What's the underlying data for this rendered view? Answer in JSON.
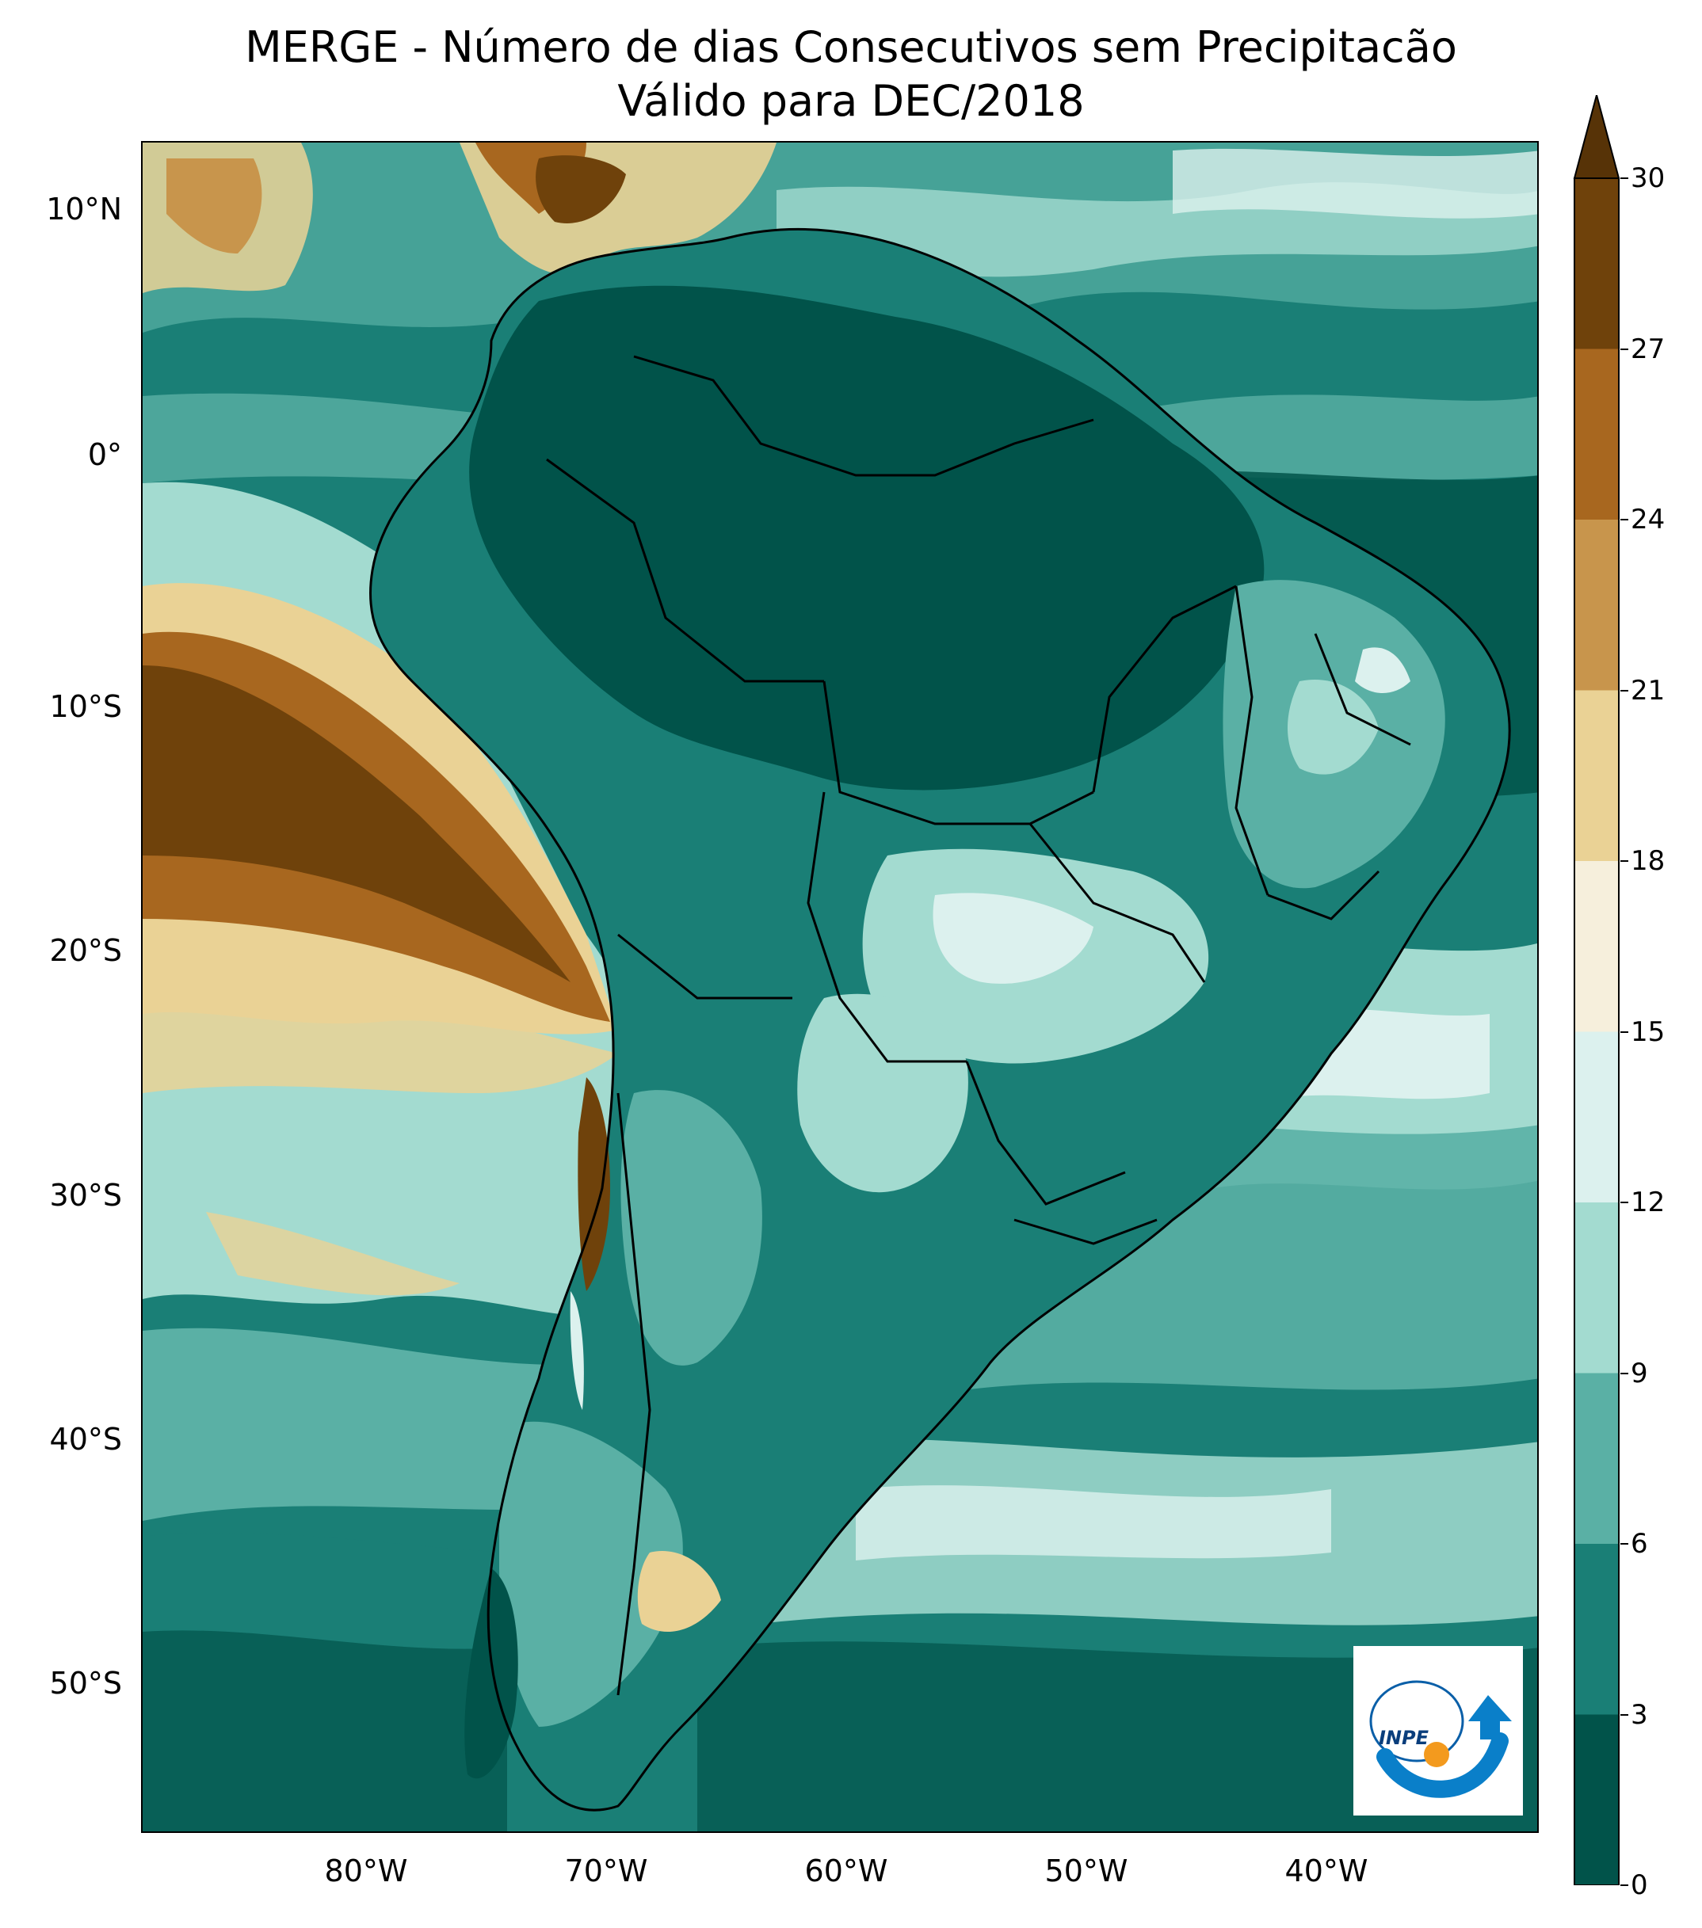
{
  "title": {
    "line1": "MERGE - Número de dias Consecutivos sem Precipitacão",
    "line2": "Válido para DEC/2018"
  },
  "axes": {
    "lat_ticks": [
      "10°N",
      "0°",
      "10°S",
      "20°S",
      "30°S",
      "40°S",
      "50°S"
    ],
    "lon_ticks": [
      "80°W",
      "70°W",
      "60°W",
      "50°W",
      "40°W"
    ]
  },
  "colorbar": {
    "ticks": [
      "0",
      "3",
      "6",
      "9",
      "12",
      "15",
      "18",
      "21",
      "24",
      "27",
      "30"
    ],
    "bins": [
      {
        "from": 0,
        "to": 3,
        "color": "#01534a"
      },
      {
        "from": 3,
        "to": 6,
        "color": "#1a7f76"
      },
      {
        "from": 6,
        "to": 9,
        "color": "#5ab0a5"
      },
      {
        "from": 9,
        "to": 12,
        "color": "#a3dbd0"
      },
      {
        "from": 12,
        "to": 15,
        "color": "#dcf1ee"
      },
      {
        "from": 15,
        "to": 18,
        "color": "#f6efdc"
      },
      {
        "from": 18,
        "to": 21,
        "color": "#ead295"
      },
      {
        "from": 21,
        "to": 24,
        "color": "#c8954c"
      },
      {
        "from": 24,
        "to": 27,
        "color": "#a8671f"
      },
      {
        "from": 27,
        "to": 30,
        "color": "#6f420b"
      }
    ],
    "extend_color": "#573307"
  },
  "logo": {
    "text": "INPE"
  },
  "chart_data": {
    "type": "heatmap",
    "title": "MERGE - Número de dias Consecutivos sem Precipitacão",
    "subtitle": "Válido para DEC/2018",
    "xlim": [
      -90,
      -32
    ],
    "ylim": [
      -56,
      13
    ],
    "colorbar_range": [
      0,
      30
    ],
    "colorbar_extend": "max"
  }
}
